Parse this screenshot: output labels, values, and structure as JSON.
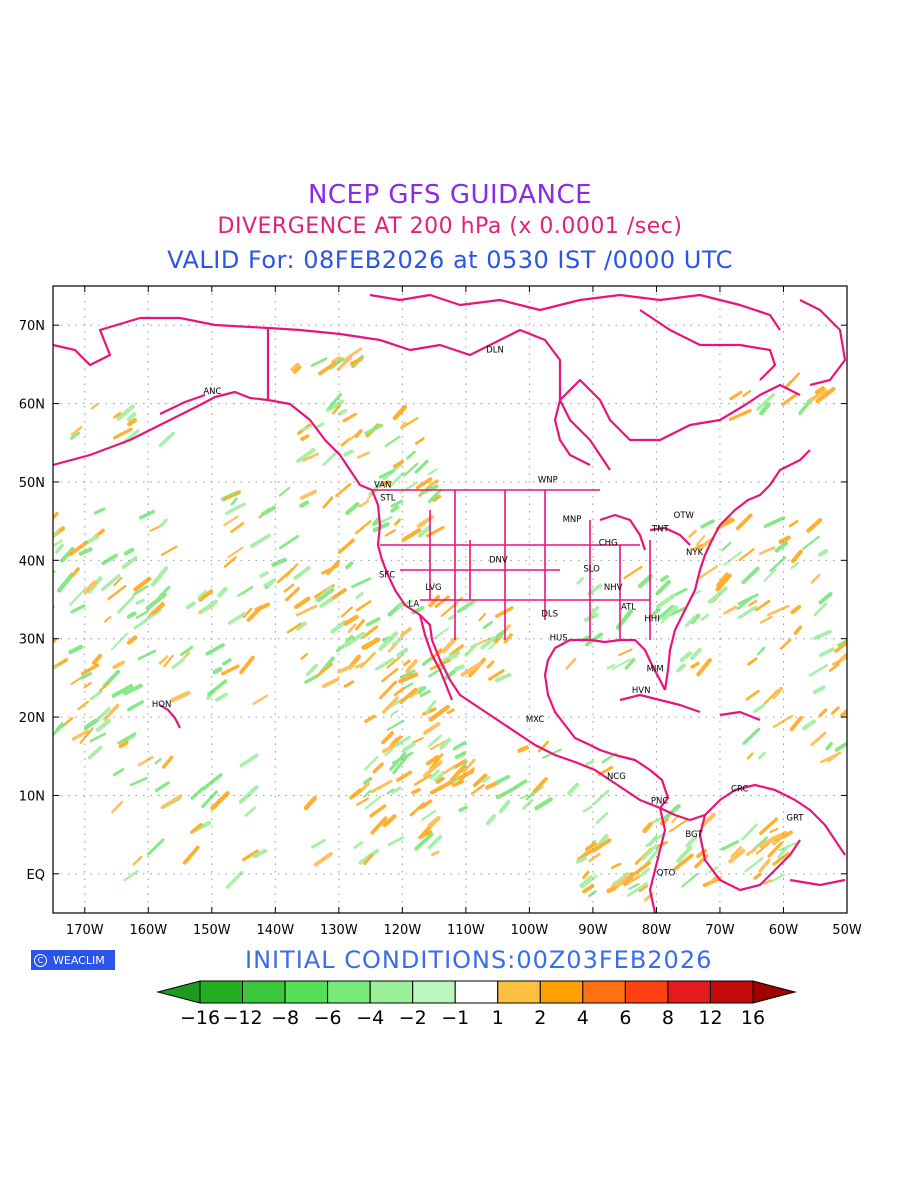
{
  "header": {
    "title": "NCEP GFS GUIDANCE",
    "subtitle": "DIVERGENCE AT 200 hPa (x 0.0001 /sec)",
    "valid": "VALID For: 08FEB2026 at 0530 IST /0000 UTC"
  },
  "footer": {
    "initial_conditions": "INITIAL CONDITIONS:00Z03FEB2026",
    "logo_text": "WEACLIM"
  },
  "map": {
    "lon_range": [
      -175,
      -50
    ],
    "lat_range": [
      -5,
      75
    ],
    "lon_ticks": [
      "170W",
      "160W",
      "150W",
      "140W",
      "130W",
      "120W",
      "110W",
      "100W",
      "90W",
      "80W",
      "70W",
      "60W",
      "50W"
    ],
    "lon_values": [
      -170,
      -160,
      -150,
      -140,
      -130,
      -120,
      -110,
      -100,
      -90,
      -80,
      -70,
      -60,
      -50
    ],
    "lat_ticks": [
      "EQ",
      "10N",
      "20N",
      "30N",
      "40N",
      "50N",
      "60N",
      "70N"
    ],
    "lat_values": [
      0,
      10,
      20,
      30,
      40,
      50,
      60,
      70
    ],
    "coastline_color": "#e8147a",
    "cities": [
      {
        "name": "ANC",
        "lon": -149.9,
        "lat": 61.2
      },
      {
        "name": "DLN",
        "lon": -105.4,
        "lat": 66.5
      },
      {
        "name": "VAN",
        "lon": -123.1,
        "lat": 49.3
      },
      {
        "name": "STL",
        "lon": -122.3,
        "lat": 47.6
      },
      {
        "name": "WNP",
        "lon": -97.1,
        "lat": 49.9
      },
      {
        "name": "OTW",
        "lon": -75.7,
        "lat": 45.4
      },
      {
        "name": "TNT",
        "lon": -79.4,
        "lat": 43.7
      },
      {
        "name": "MNP",
        "lon": -93.3,
        "lat": 44.9
      },
      {
        "name": "CHG",
        "lon": -87.6,
        "lat": 41.9
      },
      {
        "name": "NYK",
        "lon": -74.0,
        "lat": 40.7
      },
      {
        "name": "DNV",
        "lon": -104.9,
        "lat": 39.7
      },
      {
        "name": "SFC",
        "lon": -122.4,
        "lat": 37.8
      },
      {
        "name": "SLO",
        "lon": -90.2,
        "lat": 38.6
      },
      {
        "name": "LVG",
        "lon": -115.1,
        "lat": 36.2
      },
      {
        "name": "NHV",
        "lon": -86.8,
        "lat": 36.2
      },
      {
        "name": "LA",
        "lon": -118.2,
        "lat": 34.1
      },
      {
        "name": "ATL",
        "lon": -84.4,
        "lat": 33.7
      },
      {
        "name": "DLS",
        "lon": -96.8,
        "lat": 32.8
      },
      {
        "name": "HHI",
        "lon": -80.7,
        "lat": 32.2
      },
      {
        "name": "HUS",
        "lon": -95.4,
        "lat": 29.8
      },
      {
        "name": "MIM",
        "lon": -80.2,
        "lat": 25.8
      },
      {
        "name": "HON",
        "lon": -157.9,
        "lat": 21.3
      },
      {
        "name": "HVN",
        "lon": -82.4,
        "lat": 23.1
      },
      {
        "name": "MXC",
        "lon": -99.1,
        "lat": 19.4
      },
      {
        "name": "NCG",
        "lon": -86.3,
        "lat": 12.1
      },
      {
        "name": "CRC",
        "lon": -66.9,
        "lat": 10.5
      },
      {
        "name": "PNC",
        "lon": -79.5,
        "lat": 9.0
      },
      {
        "name": "GRT",
        "lon": -58.2,
        "lat": 6.8
      },
      {
        "name": "BGT",
        "lon": -74.1,
        "lat": 4.7
      },
      {
        "name": "QTO",
        "lon": -78.5,
        "lat": -0.2
      }
    ]
  },
  "colorbar": {
    "labels": [
      "−16",
      "−12",
      "−8",
      "−6",
      "−4",
      "−2",
      "−1",
      "1",
      "2",
      "4",
      "6",
      "8",
      "12",
      "16"
    ],
    "colors": [
      "#1e9a1e",
      "#22b022",
      "#3cc83c",
      "#55e055",
      "#77ea77",
      "#99f099",
      "#bbf6bb",
      "#ffffff",
      "#ffc040",
      "#ffa000",
      "#ff7010",
      "#ff4010",
      "#e51a1a",
      "#c40a0a",
      "#a00000"
    ]
  }
}
